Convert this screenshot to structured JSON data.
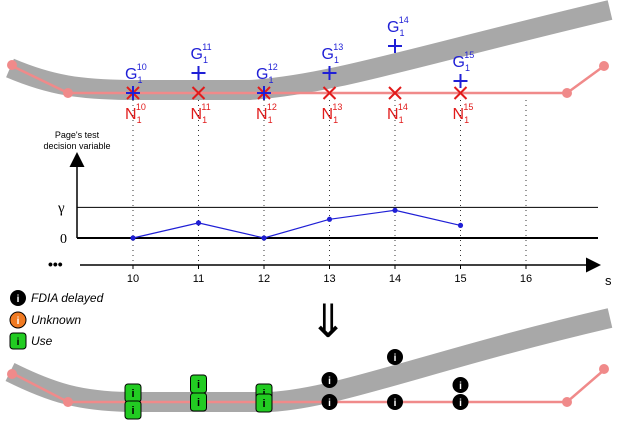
{
  "colors": {
    "road": "#a8a8a8",
    "track": "#f08a8a",
    "cross": "#e11b1b",
    "plus": "#1f1fd6",
    "series": "#1f1fd6",
    "legend_delayed": "#000000",
    "legend_unknown": "#f07a22",
    "legend_use": "#22cc22"
  },
  "top_markers": [
    {
      "index": "10",
      "g_label": "G",
      "g_sub": "1",
      "g_sup": "10",
      "n_label": "N",
      "n_sub": "1",
      "n_sup": "10"
    },
    {
      "index": "11",
      "g_label": "G",
      "g_sub": "1",
      "g_sup": "11",
      "n_label": "N",
      "n_sub": "1",
      "n_sup": "11"
    },
    {
      "index": "12",
      "g_label": "G",
      "g_sub": "1",
      "g_sup": "12",
      "n_label": "N",
      "n_sub": "1",
      "n_sup": "12"
    },
    {
      "index": "13",
      "g_label": "G",
      "g_sub": "1",
      "g_sup": "13",
      "n_label": "N",
      "n_sub": "1",
      "n_sup": "13"
    },
    {
      "index": "14",
      "g_label": "G",
      "g_sub": "1",
      "g_sup": "14",
      "n_label": "N",
      "n_sub": "1",
      "n_sup": "14"
    },
    {
      "index": "15",
      "g_label": "G",
      "g_sub": "1",
      "g_sup": "15",
      "n_label": "N",
      "n_sub": "1",
      "n_sup": "15"
    }
  ],
  "chart_data": {
    "type": "line",
    "ylabel": "Page's test decision variable",
    "xlabel": "s",
    "x": [
      10,
      11,
      12,
      13,
      14,
      15
    ],
    "values": [
      0,
      0.42,
      0,
      0.52,
      0.77,
      0.35
    ],
    "x_ticks": [
      "10",
      "11",
      "12",
      "13",
      "14",
      "15",
      "16"
    ],
    "y_tick_labels": [
      "γ",
      "0"
    ],
    "threshold": 0.85,
    "ylim": [
      0,
      1.5
    ],
    "xlim": [
      9,
      17
    ],
    "leading_dots": "•••"
  },
  "legend": {
    "delayed": "FDIA delayed",
    "unknown": "Unknown",
    "use": "Use"
  },
  "icons": {
    "delayed": "info-circle-icon",
    "unknown": "info-circle-icon",
    "use": "info-square-icon",
    "arrow": "double-arrow-down-icon",
    "marker_i": "i"
  },
  "arrow_glyph": "⇓"
}
